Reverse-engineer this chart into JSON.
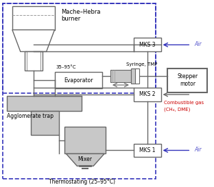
{
  "fig_width": 3.12,
  "fig_height": 2.73,
  "dpi": 100,
  "bg_color": "#ffffff",
  "labels": {
    "mache_hebra": "Mache–Hebra\nburner",
    "evaporator": "Evaporator",
    "temp_evap": "35–95°C",
    "syringe_tmp": "Syringe, TMP",
    "stepper": "Stepper\nmotor",
    "mks3": "MKS 3",
    "mks2": "MKS 2",
    "mks1": "MKS 1",
    "air1": "Air",
    "air2": "Air",
    "combustible": "Combustible gas",
    "ch4_dme": "(CH₄, DME)",
    "agglomerate": "Agglomerate trap",
    "mixer": "Mixer",
    "thermostating": "Thermostating (25–95°C)"
  },
  "colors": {
    "box_border": "#666666",
    "dashed": "#3333bb",
    "air_label": "#5555cc",
    "combustible_label": "#cc0000",
    "line": "#666666",
    "fill_gray": "#c8c8c8",
    "fill_white": "#ffffff"
  }
}
